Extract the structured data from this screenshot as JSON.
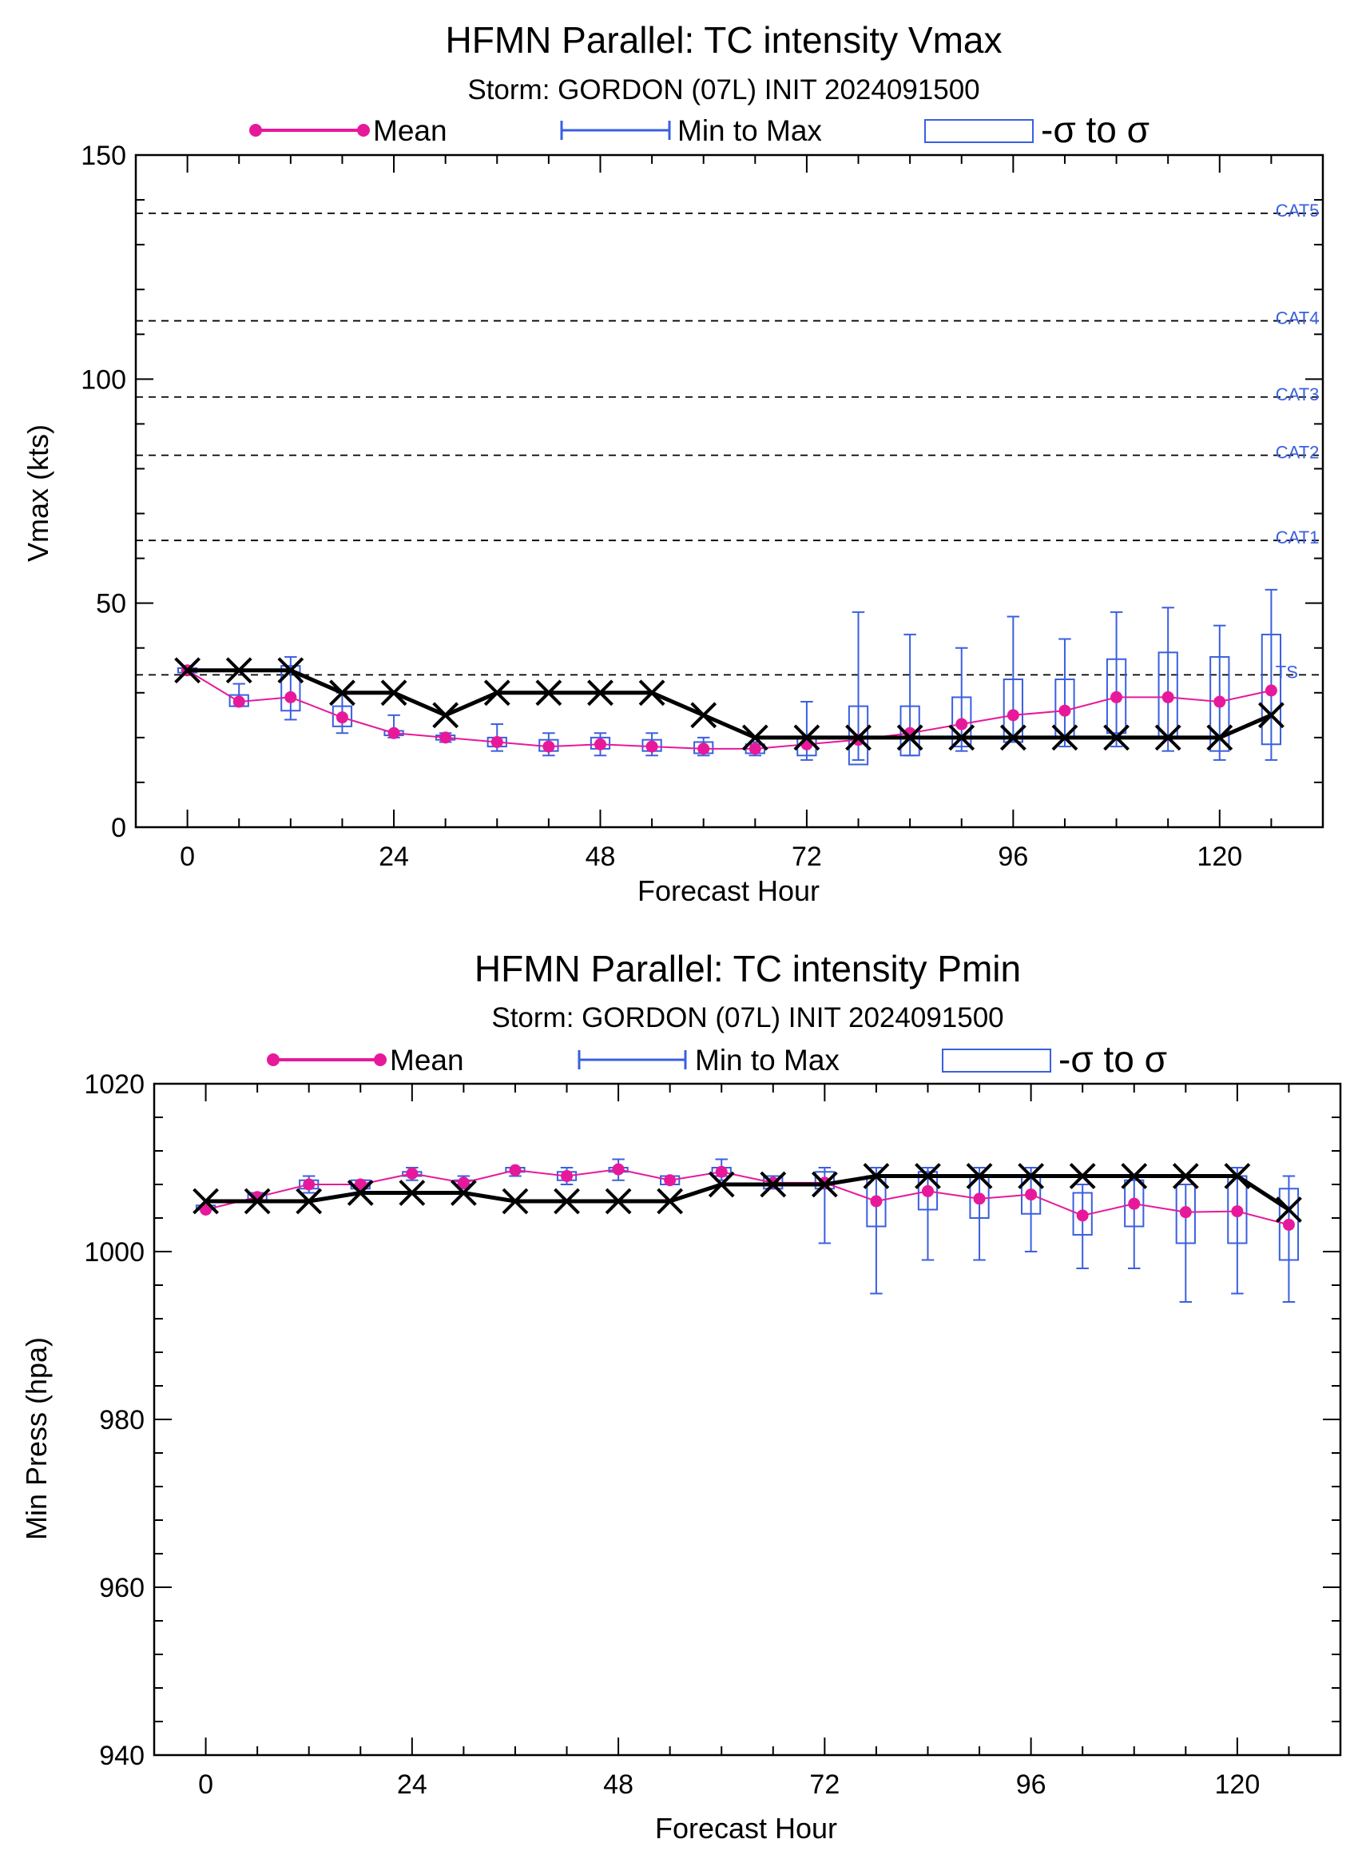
{
  "chart_data": [
    {
      "type": "line",
      "title": "HFMN Parallel: TC intensity Vmax",
      "subtitle": "Storm: GORDON (07L) INIT 2024091500",
      "xlabel": "Forecast Hour",
      "ylabel": "Vmax (kts)",
      "xlim": [
        -6,
        132
      ],
      "ylim": [
        0,
        150
      ],
      "xticks": [
        0,
        24,
        48,
        72,
        96,
        120
      ],
      "yticks": [
        0,
        50,
        100,
        150
      ],
      "grid": false,
      "legend_position": "top",
      "legend": {
        "mean": "Mean",
        "minmax": "Min to Max",
        "sigma": "-σ to σ"
      },
      "colors": {
        "mean": "#e6199b",
        "ensemble": "#3a5fe0",
        "observed": "#000000",
        "thresholds": "#000000"
      },
      "thresholds": [
        {
          "label": "TS",
          "value": 34
        },
        {
          "label": "CAT1",
          "value": 64
        },
        {
          "label": "CAT2",
          "value": 83
        },
        {
          "label": "CAT3",
          "value": 96
        },
        {
          "label": "CAT4",
          "value": 113
        },
        {
          "label": "CAT5",
          "value": 137
        }
      ],
      "hours": [
        0,
        6,
        12,
        18,
        24,
        30,
        36,
        42,
        48,
        54,
        60,
        66,
        72,
        78,
        84,
        90,
        96,
        102,
        108,
        114,
        120,
        126
      ],
      "observed": [
        35,
        35,
        35,
        30,
        30,
        25,
        30,
        30,
        30,
        30,
        25,
        20,
        20,
        20,
        20,
        20,
        20,
        20,
        20,
        20,
        20,
        25
      ],
      "mean": [
        35,
        28,
        29,
        24.5,
        21,
        20,
        19,
        18,
        18.5,
        18,
        17.5,
        17.5,
        18.5,
        19.5,
        21,
        23,
        25,
        26,
        29,
        29,
        28,
        30.5
      ],
      "min": [
        35,
        27,
        24,
        21,
        20,
        19,
        17,
        16,
        16,
        16,
        16,
        16,
        15,
        15,
        16,
        17,
        19,
        18,
        18,
        17,
        15,
        15
      ],
      "max": [
        35,
        32,
        38,
        30,
        25,
        21,
        23,
        21,
        21,
        21,
        20,
        19,
        28,
        48,
        43,
        40,
        47,
        42,
        48,
        49,
        45,
        53
      ],
      "sigma_low": [
        34.5,
        27,
        26,
        22.5,
        20.5,
        19.5,
        18,
        17,
        17.5,
        17,
        16.5,
        16.5,
        16,
        14,
        16,
        18,
        19,
        20,
        21,
        20,
        17,
        18.5
      ],
      "sigma_high": [
        35.5,
        29.5,
        36,
        27,
        21.5,
        20.5,
        20,
        19.5,
        20,
        19.5,
        19,
        18.5,
        20,
        27,
        27,
        29,
        33,
        33,
        37.5,
        39,
        38,
        43
      ]
    },
    {
      "type": "line",
      "title": "HFMN Parallel: TC intensity Pmin",
      "subtitle": "Storm: GORDON (07L) INIT 2024091500",
      "xlabel": "Forecast Hour",
      "ylabel": "Min Press (hpa)",
      "xlim": [
        -6,
        132
      ],
      "ylim": [
        940,
        1020
      ],
      "xticks": [
        0,
        24,
        48,
        72,
        96,
        120
      ],
      "yticks": [
        940,
        960,
        980,
        1000,
        1020
      ],
      "grid": false,
      "legend_position": "top",
      "legend": {
        "mean": "Mean",
        "minmax": "Min to Max",
        "sigma": "-σ to σ"
      },
      "colors": {
        "mean": "#e6199b",
        "ensemble": "#3a5fe0",
        "observed": "#000000"
      },
      "hours": [
        0,
        6,
        12,
        18,
        24,
        30,
        36,
        42,
        48,
        54,
        60,
        66,
        72,
        78,
        84,
        90,
        96,
        102,
        108,
        114,
        120,
        126
      ],
      "observed": [
        1006,
        1006,
        1006,
        1007,
        1007,
        1007,
        1006,
        1006,
        1006,
        1006,
        1008,
        1008,
        1008,
        1009,
        1009,
        1009,
        1009,
        1009,
        1009,
        1009,
        1009,
        1005
      ],
      "mean": [
        1005,
        1006.5,
        1008,
        1008,
        1009.3,
        1008.2,
        1009.7,
        1009,
        1009.8,
        1008.5,
        1009.5,
        1008.2,
        1008.2,
        1006,
        1007.2,
        1006.3,
        1006.8,
        1004.3,
        1005.7,
        1004.7,
        1004.8,
        1003.2
      ],
      "min": [
        1005,
        1006,
        1007,
        1007,
        1008.5,
        1007.5,
        1009,
        1008,
        1008.5,
        1008,
        1008.5,
        1007.5,
        1001,
        995,
        999,
        999,
        1000,
        998,
        998,
        994,
        995,
        994
      ],
      "max": [
        1005,
        1007,
        1009,
        1008.5,
        1010,
        1009,
        1010,
        1010,
        1011,
        1009,
        1011,
        1009,
        1010,
        1010,
        1010,
        1010,
        1010,
        1008,
        1009,
        1008,
        1010,
        1009
      ],
      "sigma_low": [
        1005,
        1006,
        1007.5,
        1007.5,
        1009,
        1008,
        1009.5,
        1008.5,
        1009.5,
        1008,
        1009,
        1007.5,
        1007.5,
        1003,
        1005,
        1004,
        1004.5,
        1002,
        1003,
        1001,
        1001,
        999
      ],
      "sigma_high": [
        1005.5,
        1007,
        1008.5,
        1008.5,
        1009.5,
        1008.5,
        1010,
        1009.5,
        1010,
        1009,
        1010,
        1009,
        1009.5,
        1009,
        1009.5,
        1009,
        1009,
        1007,
        1008.5,
        1008,
        1009,
        1007.5
      ]
    }
  ]
}
